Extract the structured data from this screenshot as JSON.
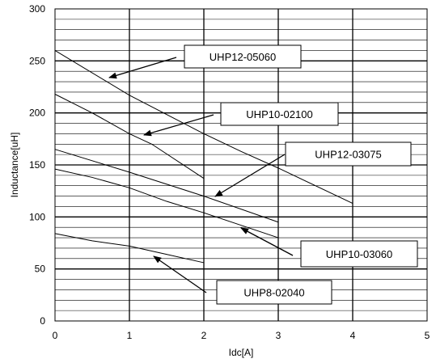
{
  "chart_data": {
    "type": "line",
    "title": "",
    "xlabel": "Idc[A]",
    "ylabel": "Inductance[uH]",
    "xlim": [
      0,
      5
    ],
    "ylim": [
      0,
      300
    ],
    "x_ticks": [
      0,
      1,
      2,
      3,
      4,
      5
    ],
    "y_ticks": [
      0,
      50,
      100,
      150,
      200,
      250,
      300
    ],
    "x_tick_labels": [
      "0",
      "1",
      "2",
      "3",
      "4",
      "5"
    ],
    "y_tick_labels": [
      "0",
      "50",
      "100",
      "150",
      "200",
      "250",
      "300"
    ],
    "minor_y_step": 10,
    "grid": true,
    "legend": "none",
    "series": [
      {
        "name": "UHP12-05060",
        "x": [
          0,
          1,
          2,
          2.5,
          3,
          4
        ],
        "y": [
          260,
          217,
          180,
          163,
          147,
          113
        ]
      },
      {
        "name": "UHP10-02100",
        "x": [
          0,
          0.5,
          1,
          1.3,
          2
        ],
        "y": [
          218,
          200,
          180,
          170,
          137
        ]
      },
      {
        "name": "UHP12-03075",
        "x": [
          0,
          1,
          2,
          3
        ],
        "y": [
          165,
          143,
          120,
          95
        ]
      },
      {
        "name": "UHP10-03060",
        "x": [
          0,
          0.5,
          1,
          1.5,
          2,
          3
        ],
        "y": [
          146,
          138,
          128,
          115,
          104,
          80
        ]
      },
      {
        "name": "UHP8-02040",
        "x": [
          0,
          0.5,
          1,
          1.5,
          2
        ],
        "y": [
          84,
          77,
          72,
          64,
          56
        ]
      }
    ],
    "annotations": [
      {
        "text": "UHP12-05060",
        "series": "UHP12-05060"
      },
      {
        "text": "UHP10-02100",
        "series": "UHP10-02100"
      },
      {
        "text": "UHP12-03075",
        "series": "UHP12-03075"
      },
      {
        "text": "UHP10-03060",
        "series": "UHP10-03060"
      },
      {
        "text": "UHP8-02040",
        "series": "UHP8-02040"
      }
    ]
  }
}
